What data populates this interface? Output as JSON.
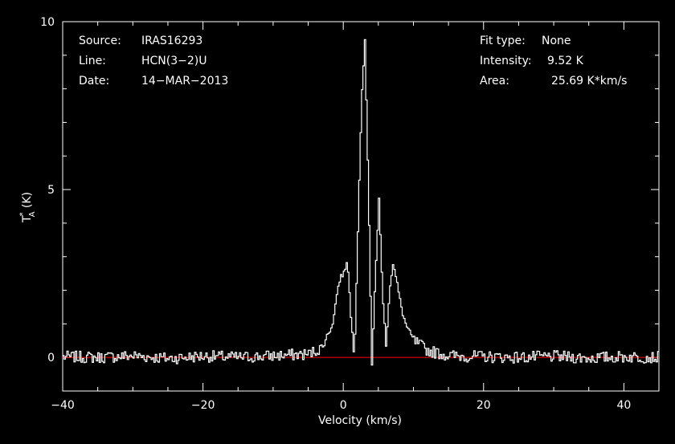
{
  "info": {
    "source_label": "Source:",
    "source_value": "IRAS16293",
    "line_label": "Line:",
    "line_value": "HCN(3−2)U",
    "date_label": "Date:",
    "date_value": "14−MAR−2013",
    "fit_label": "Fit type:",
    "fit_value": "None",
    "intensity_label": "Intensity:",
    "intensity_value": "9.52 K",
    "area_label": "Area:",
    "area_value": "25.69 K*km/s"
  },
  "chart_data": {
    "type": "line",
    "title": "",
    "xlabel": "Velocity (km/s)",
    "ylabel": "T_A* (K)",
    "xlim": [
      -40,
      45
    ],
    "ylim": [
      -1,
      10
    ],
    "xticks": [
      -40,
      -20,
      0,
      20,
      40
    ],
    "xtick_labels": [
      "−40",
      "−20",
      "0",
      "20",
      "40"
    ],
    "yticks": [
      0,
      5,
      10
    ],
    "ytick_labels": [
      "0",
      "5",
      "10"
    ],
    "grid": false,
    "colors": {
      "background": "#000000",
      "axes": "#ffffff",
      "spectrum": "#ffffff",
      "baseline": "#ff0000"
    },
    "baseline_y": 0,
    "series": [
      {
        "style": "step",
        "x": [
          -40,
          -35,
          -30,
          -25,
          -20,
          -15,
          -10,
          -5,
          -4,
          -3,
          -2.5,
          -2,
          -1.5,
          -1,
          -0.5,
          0,
          0.5,
          1,
          1.5,
          2,
          2.5,
          3,
          3.5,
          4,
          4.5,
          5,
          5.5,
          6,
          6.5,
          7,
          7.5,
          8,
          8.5,
          9,
          10,
          12,
          15,
          20,
          25,
          30,
          35,
          40,
          45
        ],
        "y": [
          0.02,
          0.0,
          0.05,
          -0.03,
          0.04,
          0.0,
          0.05,
          0.1,
          0.2,
          0.3,
          0.6,
          0.8,
          1.1,
          1.9,
          2.4,
          2.5,
          2.95,
          1.2,
          0.0,
          3.8,
          7.5,
          9.52,
          5.0,
          -0.3,
          2.5,
          4.7,
          2.0,
          0.3,
          2.0,
          2.8,
          2.3,
          1.7,
          1.2,
          0.9,
          0.5,
          0.2,
          0.05,
          0.02,
          0.0,
          0.03,
          -0.02,
          0.02,
          0.0
        ]
      }
    ]
  }
}
